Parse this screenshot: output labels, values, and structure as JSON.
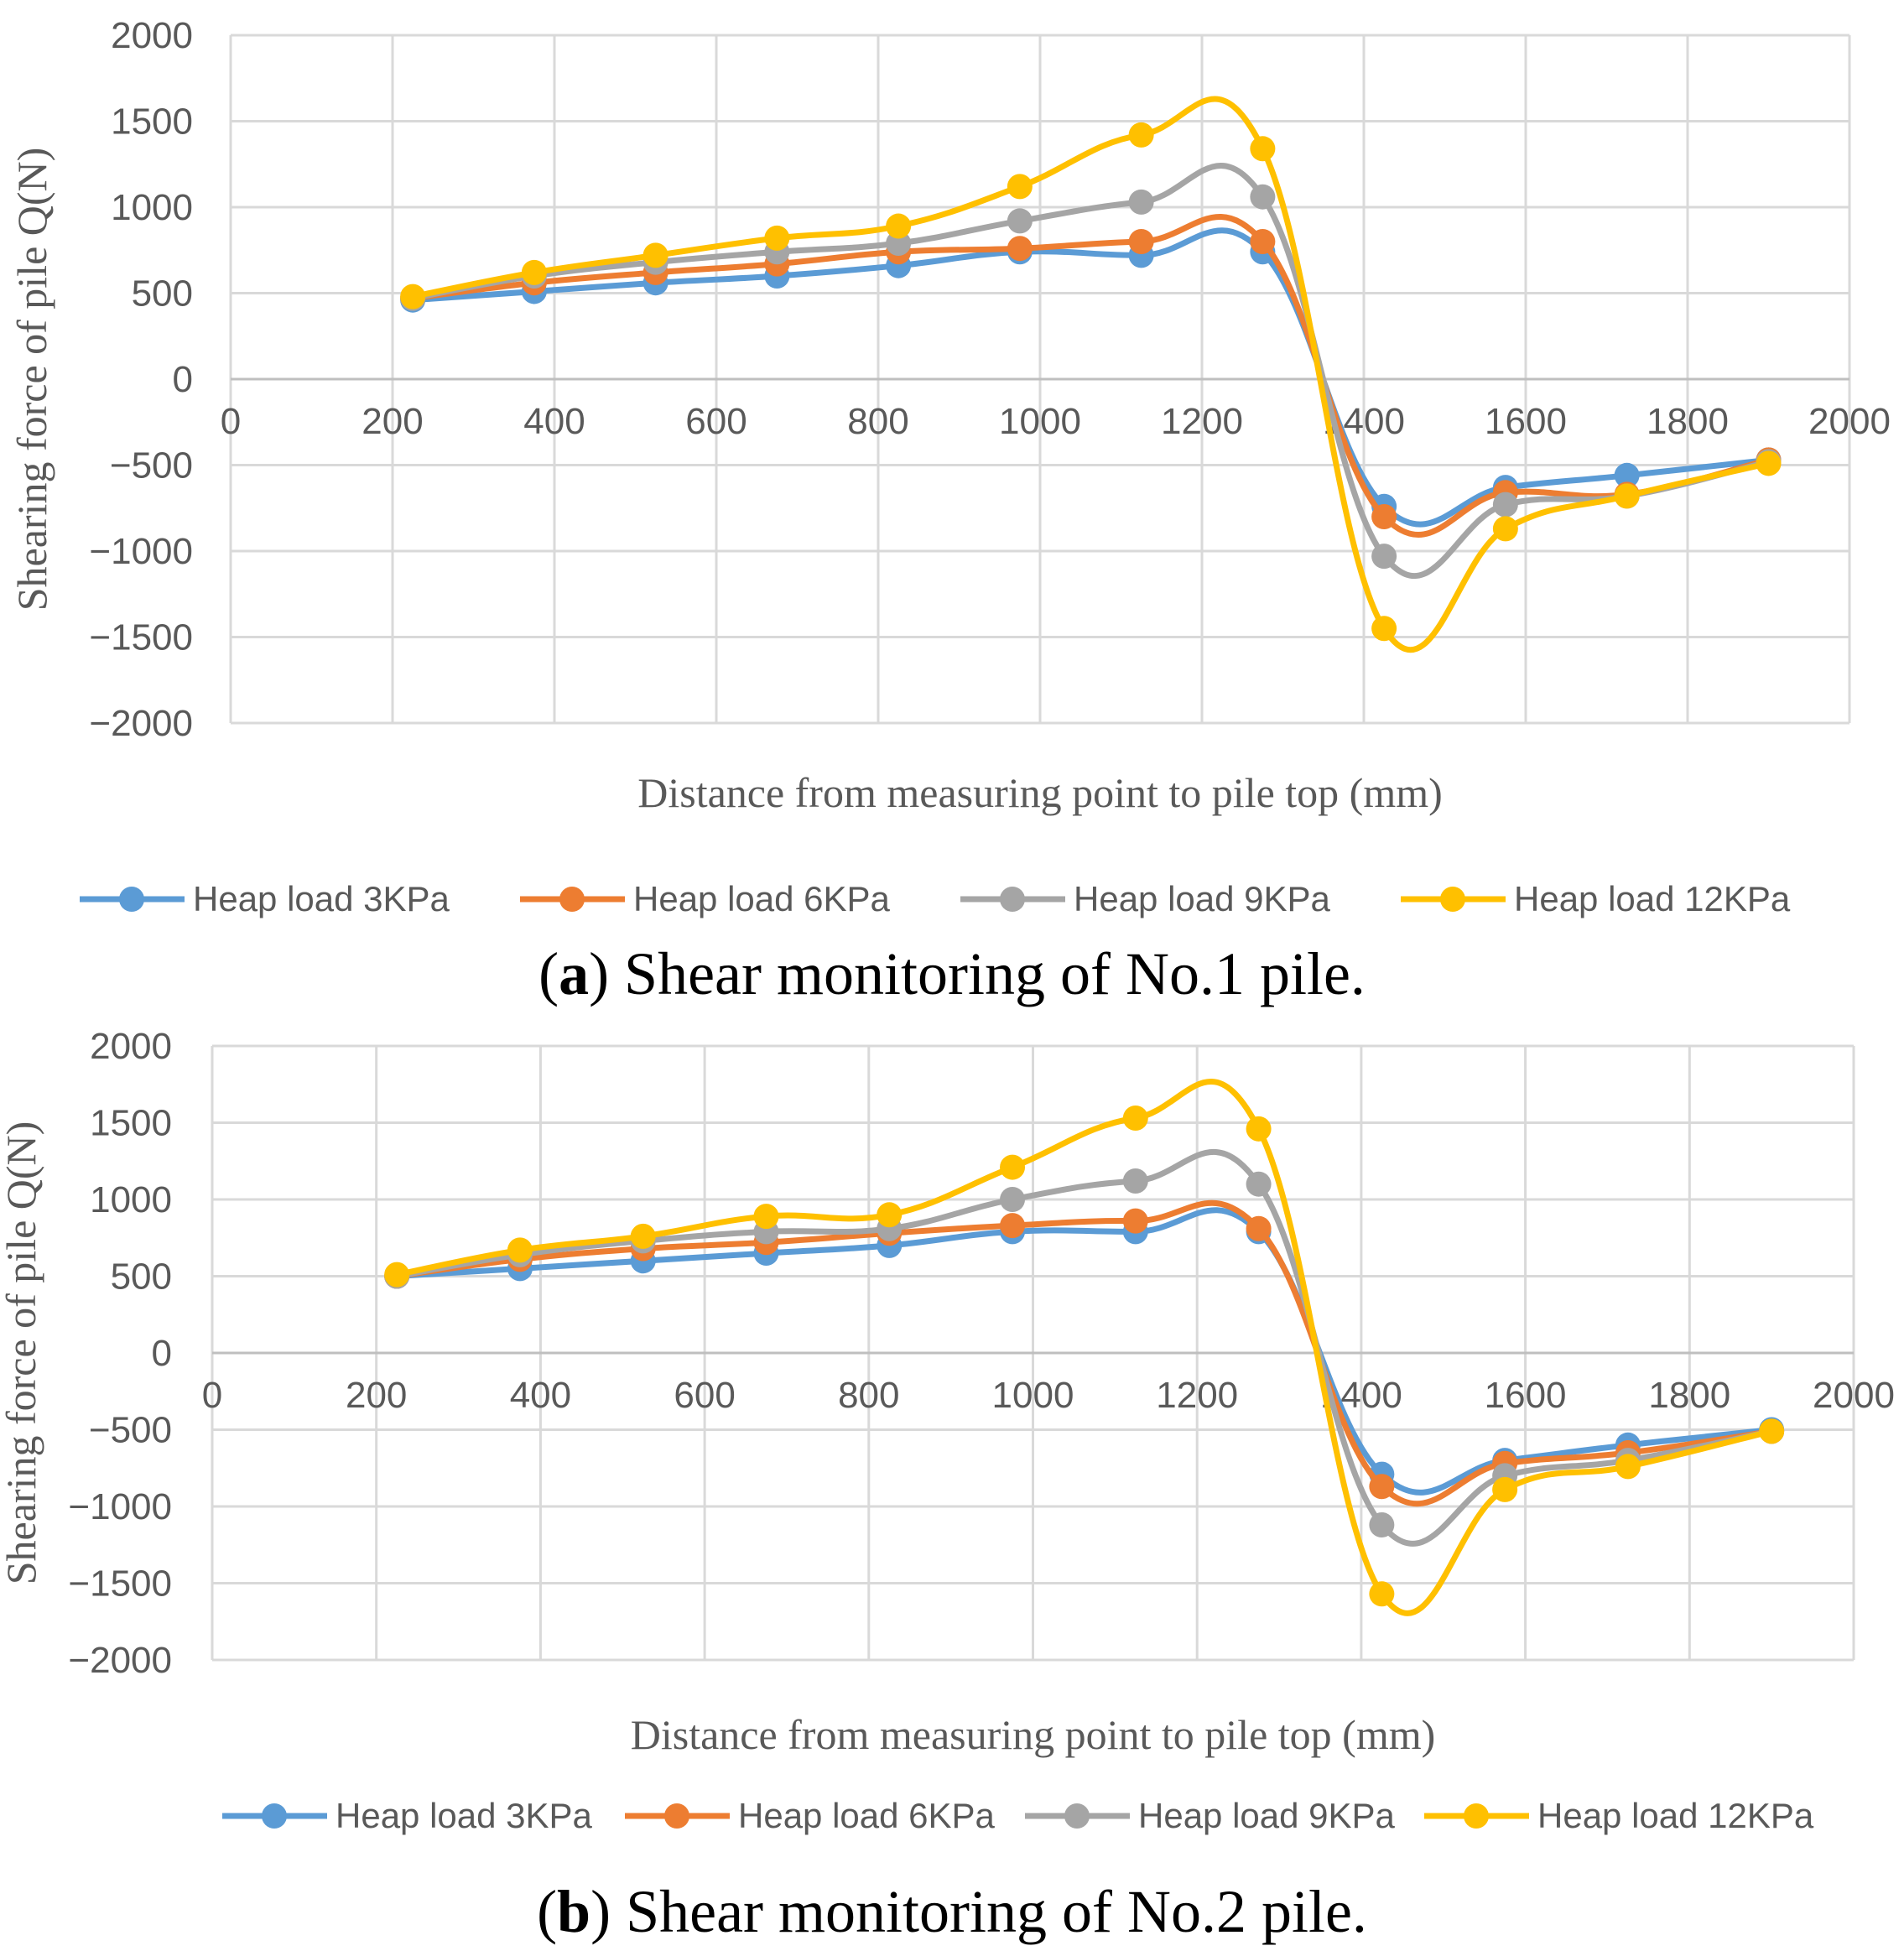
{
  "chart_data": [
    {
      "type": "line",
      "caption_letter": "a",
      "caption_text": ") Shear monitoring of No.1 pile.",
      "caption_open": "(",
      "xlabel": "Distance from measuring point to pile top  (mm)",
      "ylabel": "Shearing force of pile Q(N)",
      "xlim": [
        0,
        2000
      ],
      "ylim": [
        -2000,
        2000
      ],
      "x_ticks": [
        "0",
        "200",
        "400",
        "600",
        "800",
        "1000",
        "1200",
        "1400",
        "1600",
        "1800",
        "2000"
      ],
      "y_ticks": [
        "2000",
        "1500",
        "1000",
        "500",
        "0",
        "−500",
        "−1000",
        "−1500",
        "−2000"
      ],
      "x": [
        225,
        375,
        525,
        675,
        825,
        975,
        1125,
        1275,
        1425,
        1575,
        1725,
        1900
      ],
      "series": [
        {
          "name": "Heap load 3KPa",
          "color": "#5B9BD5",
          "values": [
            460,
            510,
            560,
            600,
            660,
            740,
            720,
            740,
            -740,
            -630,
            -560,
            -470
          ]
        },
        {
          "name": "Heap load 6KPa",
          "color": "#ED7D31",
          "values": [
            470,
            560,
            620,
            670,
            740,
            760,
            800,
            800,
            -800,
            -660,
            -670,
            -470
          ]
        },
        {
          "name": "Heap load 9KPa",
          "color": "#A5A5A5",
          "values": [
            470,
            600,
            680,
            740,
            790,
            920,
            1030,
            1060,
            -1030,
            -730,
            -680,
            -480
          ]
        },
        {
          "name": "Heap load 12KPa",
          "color": "#FFC000",
          "values": [
            480,
            620,
            720,
            820,
            890,
            1120,
            1420,
            1340,
            -1450,
            -870,
            -680,
            -490
          ]
        }
      ]
    },
    {
      "type": "line",
      "caption_letter": "b",
      "caption_text": ") Shear monitoring of No.2 pile.",
      "caption_open": "(",
      "xlabel": "Distance from measuring point to pile top  (mm)",
      "ylabel": "Shearing force of pile Q(N)",
      "xlim": [
        0,
        2000
      ],
      "ylim": [
        -2000,
        2000
      ],
      "x_ticks": [
        "0",
        "200",
        "400",
        "600",
        "800",
        "1000",
        "1200",
        "1400",
        "1600",
        "1800",
        "2000"
      ],
      "y_ticks": [
        "2000",
        "1500",
        "1000",
        "500",
        "0",
        "−500",
        "−1000",
        "−1500",
        "−2000"
      ],
      "x": [
        225,
        375,
        525,
        675,
        825,
        975,
        1125,
        1275,
        1425,
        1575,
        1725,
        1900
      ],
      "series": [
        {
          "name": "Heap load 3KPa",
          "color": "#5B9BD5",
          "values": [
            500,
            550,
            600,
            650,
            700,
            790,
            790,
            790,
            -790,
            -700,
            -600,
            -500
          ]
        },
        {
          "name": "Heap load 6KPa",
          "color": "#ED7D31",
          "values": [
            500,
            610,
            680,
            720,
            780,
            830,
            860,
            810,
            -870,
            -720,
            -650,
            -510
          ]
        },
        {
          "name": "Heap load 9KPa",
          "color": "#A5A5A5",
          "values": [
            500,
            640,
            730,
            790,
            810,
            1000,
            1120,
            1100,
            -1120,
            -800,
            -700,
            -510
          ]
        },
        {
          "name": "Heap load 12KPa",
          "color": "#FFC000",
          "values": [
            510,
            670,
            760,
            890,
            900,
            1210,
            1530,
            1460,
            -1570,
            -890,
            -740,
            -510
          ]
        }
      ]
    }
  ]
}
